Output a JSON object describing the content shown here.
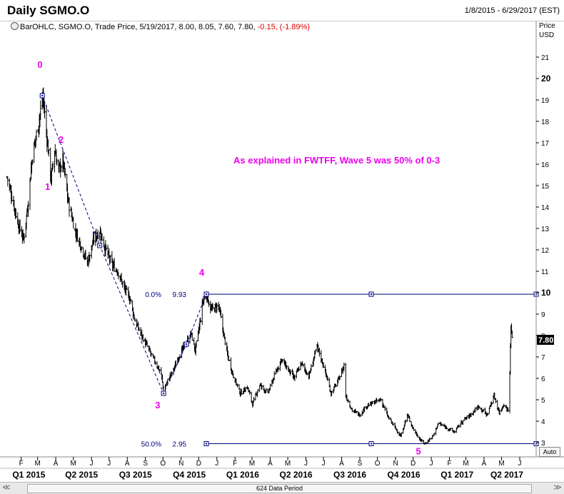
{
  "window": {
    "title": "Daily SGMO.O",
    "date_range": "1/8/2015 - 6/29/2017 (EST)"
  },
  "legend": {
    "text": "BarOHLC, SGMO.O, Trade Price, 5/19/2017, 8.00, 8.05, 7.60, 7.80, ",
    "change": "-0.15, (-1.89%)"
  },
  "price_axis": {
    "caption_line1": "Price",
    "caption_line2": "USD",
    "auto_label": "Auto"
  },
  "scrollbar": {
    "left_arrow": "≪",
    "right_arrow": "≫",
    "data_period": "624 Data Period"
  },
  "colors": {
    "bars": "#000000",
    "fib_lines": "#000080",
    "wave_labels": "#ee00ee",
    "down_change": "#e00000",
    "grid": "#d8d8d8"
  },
  "chart_data": {
    "type": "bar",
    "style": "OHLC bars (daily)",
    "ticker": "SGMO.O",
    "title": "Daily SGMO.O",
    "ylabel": "Price USD",
    "ylim": [
      2.6,
      22.0
    ],
    "y_ticks": [
      3,
      4,
      5,
      6,
      7,
      8,
      9,
      10,
      11,
      12,
      13,
      14,
      15,
      16,
      17,
      18,
      19,
      20,
      21
    ],
    "y_ticks_bold": [
      10,
      20
    ],
    "last_price_label": "7.80",
    "x_range": [
      "2015-01-08",
      "2017-06-29"
    ],
    "month_ticks": [
      {
        "label": "F",
        "date": "2015-02-01"
      },
      {
        "label": "M",
        "date": "2015-03-01"
      },
      {
        "label": "A",
        "date": "2015-04-01"
      },
      {
        "label": "M",
        "date": "2015-05-01"
      },
      {
        "label": "J",
        "date": "2015-06-01"
      },
      {
        "label": "J",
        "date": "2015-07-01"
      },
      {
        "label": "A",
        "date": "2015-08-01"
      },
      {
        "label": "S",
        "date": "2015-09-01"
      },
      {
        "label": "O",
        "date": "2015-10-01"
      },
      {
        "label": "N",
        "date": "2015-11-01"
      },
      {
        "label": "D",
        "date": "2015-12-01"
      },
      {
        "label": "J",
        "date": "2016-01-01"
      },
      {
        "label": "F",
        "date": "2016-02-01"
      },
      {
        "label": "M",
        "date": "2016-03-01"
      },
      {
        "label": "A",
        "date": "2016-04-01"
      },
      {
        "label": "M",
        "date": "2016-05-01"
      },
      {
        "label": "J",
        "date": "2016-06-01"
      },
      {
        "label": "J",
        "date": "2016-07-01"
      },
      {
        "label": "A",
        "date": "2016-08-01"
      },
      {
        "label": "S",
        "date": "2016-09-01"
      },
      {
        "label": "O",
        "date": "2016-10-01"
      },
      {
        "label": "N",
        "date": "2016-11-01"
      },
      {
        "label": "D",
        "date": "2016-12-01"
      },
      {
        "label": "J",
        "date": "2017-01-01"
      },
      {
        "label": "F",
        "date": "2017-02-01"
      },
      {
        "label": "M",
        "date": "2017-03-01"
      },
      {
        "label": "A",
        "date": "2017-04-01"
      },
      {
        "label": "M",
        "date": "2017-05-01"
      },
      {
        "label": "J",
        "date": "2017-06-01"
      }
    ],
    "quarter_labels": [
      {
        "label": "Q1 2015",
        "date": "2015-02-14"
      },
      {
        "label": "Q2 2015",
        "date": "2015-05-15"
      },
      {
        "label": "Q3 2015",
        "date": "2015-08-15"
      },
      {
        "label": "Q4 2015",
        "date": "2015-11-15"
      },
      {
        "label": "Q1 2016",
        "date": "2016-02-14"
      },
      {
        "label": "Q2 2016",
        "date": "2016-05-15"
      },
      {
        "label": "Q3 2016",
        "date": "2016-08-15"
      },
      {
        "label": "Q4 2016",
        "date": "2016-11-15"
      },
      {
        "label": "Q1 2017",
        "date": "2017-02-14"
      },
      {
        "label": "Q2 2017",
        "date": "2017-05-10"
      }
    ],
    "price_path": [
      [
        "2015-01-08",
        15.4
      ],
      [
        "2015-01-16",
        14.5
      ],
      [
        "2015-01-27",
        13.2
      ],
      [
        "2015-02-05",
        12.5
      ],
      [
        "2015-02-12",
        14.0
      ],
      [
        "2015-02-20",
        16.4
      ],
      [
        "2015-03-02",
        17.8
      ],
      [
        "2015-03-10",
        19.2
      ],
      [
        "2015-03-16",
        17.5
      ],
      [
        "2015-03-24",
        15.3
      ],
      [
        "2015-03-30",
        16.7
      ],
      [
        "2015-04-06",
        15.7
      ],
      [
        "2015-04-13",
        16.2
      ],
      [
        "2015-04-22",
        14.3
      ],
      [
        "2015-05-04",
        12.9
      ],
      [
        "2015-05-14",
        12.2
      ],
      [
        "2015-05-25",
        11.4
      ],
      [
        "2015-06-05",
        12.5
      ],
      [
        "2015-06-15",
        12.9
      ],
      [
        "2015-06-24",
        12.1
      ],
      [
        "2015-07-06",
        11.3
      ],
      [
        "2015-07-16",
        11.0
      ],
      [
        "2015-07-27",
        10.2
      ],
      [
        "2015-08-06",
        9.7
      ],
      [
        "2015-08-14",
        8.7
      ],
      [
        "2015-08-24",
        8.1
      ],
      [
        "2015-09-02",
        7.6
      ],
      [
        "2015-09-11",
        7.1
      ],
      [
        "2015-09-21",
        6.6
      ],
      [
        "2015-09-28",
        6.2
      ],
      [
        "2015-10-02",
        5.4
      ],
      [
        "2015-10-09",
        5.9
      ],
      [
        "2015-10-19",
        6.4
      ],
      [
        "2015-10-29",
        7.1
      ],
      [
        "2015-11-09",
        7.6
      ],
      [
        "2015-11-18",
        8.1
      ],
      [
        "2015-11-25",
        7.3
      ],
      [
        "2015-12-02",
        8.4
      ],
      [
        "2015-12-08",
        9.6
      ],
      [
        "2015-12-14",
        9.9
      ],
      [
        "2015-12-22",
        9.2
      ],
      [
        "2016-01-04",
        9.4
      ],
      [
        "2016-01-11",
        8.3
      ],
      [
        "2016-01-19",
        7.1
      ],
      [
        "2016-01-28",
        6.2
      ],
      [
        "2016-02-10",
        5.3
      ],
      [
        "2016-02-22",
        5.6
      ],
      [
        "2016-03-02",
        4.8
      ],
      [
        "2016-03-14",
        5.7
      ],
      [
        "2016-03-28",
        5.3
      ],
      [
        "2016-04-08",
        6.1
      ],
      [
        "2016-04-20",
        6.9
      ],
      [
        "2016-05-02",
        6.4
      ],
      [
        "2016-05-12",
        6.0
      ],
      [
        "2016-05-24",
        6.7
      ],
      [
        "2016-06-06",
        6.1
      ],
      [
        "2016-06-20",
        7.5
      ],
      [
        "2016-07-01",
        6.6
      ],
      [
        "2016-07-14",
        5.3
      ],
      [
        "2016-07-26",
        5.9
      ],
      [
        "2016-08-05",
        6.6
      ],
      [
        "2016-08-08",
        5.2
      ],
      [
        "2016-08-19",
        4.5
      ],
      [
        "2016-09-01",
        4.3
      ],
      [
        "2016-09-12",
        4.7
      ],
      [
        "2016-09-27",
        4.9
      ],
      [
        "2016-10-07",
        5.0
      ],
      [
        "2016-10-19",
        4.2
      ],
      [
        "2016-10-31",
        3.7
      ],
      [
        "2016-11-10",
        3.3
      ],
      [
        "2016-11-21",
        4.3
      ],
      [
        "2016-12-02",
        3.6
      ],
      [
        "2016-12-14",
        3.1
      ],
      [
        "2016-12-21",
        2.95
      ],
      [
        "2017-01-04",
        3.3
      ],
      [
        "2017-01-13",
        3.9
      ],
      [
        "2017-01-27",
        3.7
      ],
      [
        "2017-02-09",
        3.5
      ],
      [
        "2017-02-23",
        4.0
      ],
      [
        "2017-03-09",
        4.3
      ],
      [
        "2017-03-23",
        4.7
      ],
      [
        "2017-04-06",
        4.3
      ],
      [
        "2017-04-18",
        5.2
      ],
      [
        "2017-04-27",
        4.4
      ],
      [
        "2017-05-05",
        4.8
      ],
      [
        "2017-05-12",
        4.5
      ],
      [
        "2017-05-15",
        6.4
      ],
      [
        "2017-05-17",
        8.4
      ],
      [
        "2017-05-19",
        7.8
      ]
    ],
    "wave_labels": [
      {
        "label": "0",
        "date": "2015-03-05",
        "price": 20.5
      },
      {
        "label": "1",
        "date": "2015-03-18",
        "price": 14.8
      },
      {
        "label": "2",
        "date": "2015-04-10",
        "price": 17.0
      },
      {
        "label": "3",
        "date": "2015-09-22",
        "price": 4.6
      },
      {
        "label": "4",
        "date": "2015-12-06",
        "price": 10.8
      },
      {
        "label": "5",
        "date": "2016-12-10",
        "price": 2.45
      }
    ],
    "wave_path_dashed": [
      [
        "2015-03-09",
        19.2
      ],
      [
        "2015-06-15",
        12.2
      ],
      [
        "2015-10-02",
        5.3
      ],
      [
        "2015-11-10",
        7.6
      ],
      [
        "2015-12-14",
        9.93
      ]
    ],
    "fibonacci": {
      "start_date": "2015-12-14",
      "end_date": "2017-06-29",
      "levels": [
        {
          "percent": "0.0%",
          "value": "9.93",
          "price": 9.93
        },
        {
          "percent": "50.0%",
          "value": "2.95",
          "price": 2.95
        }
      ]
    },
    "annotation": "As explained in FWTFF, Wave 5 was 50% of 0-3"
  }
}
